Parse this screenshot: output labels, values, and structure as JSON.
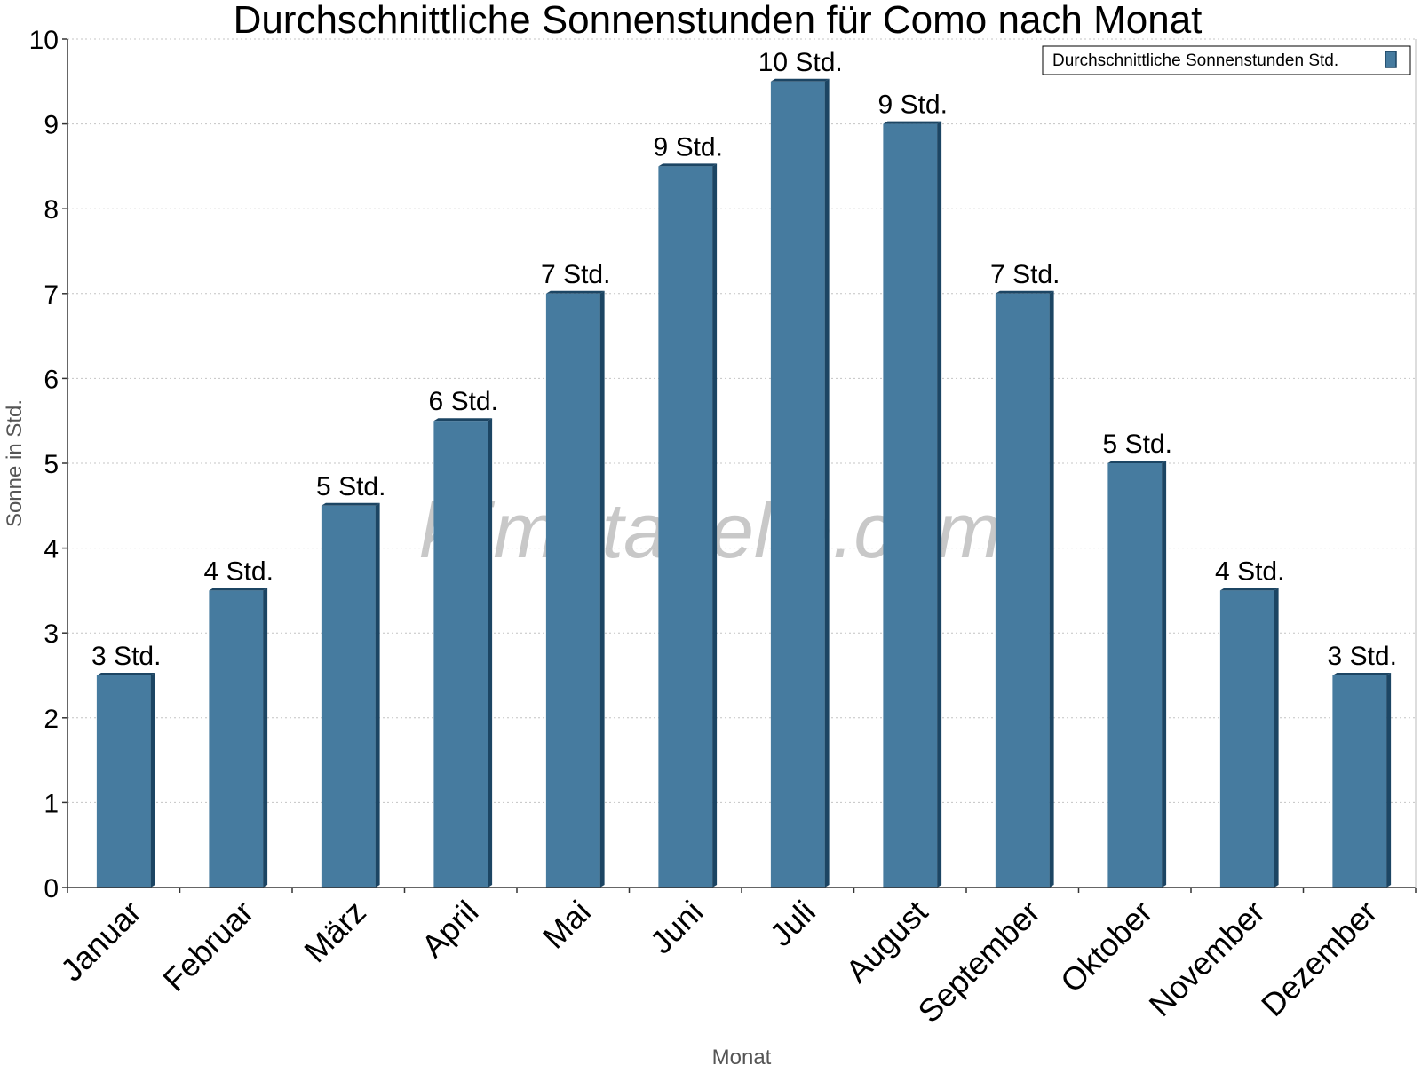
{
  "chart_data": {
    "type": "bar",
    "title": "Durchschnittliche Sonnenstunden für Como nach Monat",
    "xlabel": "Monat",
    "ylabel": "Sonne in Std.",
    "ylim": [
      0,
      10
    ],
    "yticks": [
      "0",
      "1",
      "2",
      "3",
      "4",
      "5",
      "6",
      "7",
      "8",
      "9",
      "10"
    ],
    "grid": true,
    "legend_position": "top-right",
    "categories": [
      "Januar",
      "Februar",
      "März",
      "April",
      "Mai",
      "Juni",
      "Juli",
      "August",
      "September",
      "Oktober",
      "November",
      "Dezember"
    ],
    "series": [
      {
        "name": "Durchschnittliche Sonnenstunden Std.",
        "color": "#467b9f",
        "values": [
          2.5,
          3.5,
          4.5,
          5.5,
          7.0,
          8.5,
          9.5,
          9.0,
          7.0,
          5.0,
          3.5,
          2.5
        ],
        "labels": [
          "3 Std.",
          "4 Std.",
          "5 Std.",
          "6 Std.",
          "7 Std.",
          "9 Std.",
          "10 Std.",
          "9 Std.",
          "7 Std.",
          "5 Std.",
          "4 Std.",
          "3 Std."
        ]
      }
    ],
    "watermark": "klimatabelle.com"
  }
}
